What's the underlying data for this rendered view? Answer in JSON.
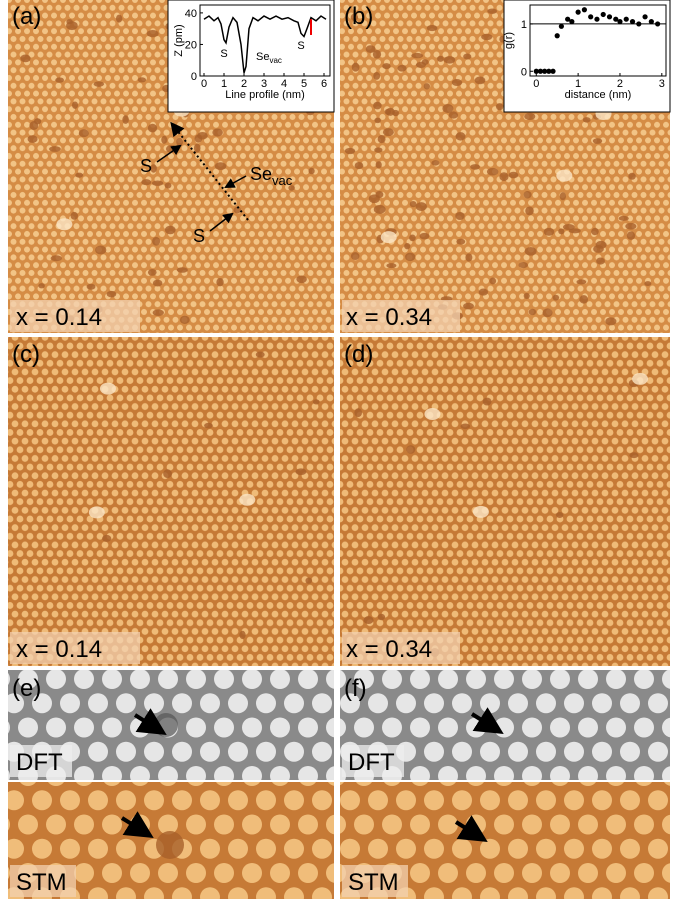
{
  "panels": [
    {
      "label": "(a)",
      "composition": "x = 0.14"
    },
    {
      "label": "(b)",
      "composition": "x = 0.34"
    },
    {
      "label": "(c)",
      "composition": "x = 0.14"
    },
    {
      "label": "(d)",
      "composition": "x = 0.34"
    },
    {
      "label": "(e)",
      "top": "DFT",
      "bottom": "STM"
    },
    {
      "label": "(f)",
      "top": "DFT",
      "bottom": "STM"
    }
  ],
  "annotations_a": {
    "s_upper": "S",
    "s_lower": "S",
    "vacancy": {
      "main": "Se",
      "sub": "vac"
    }
  },
  "inset_a": {
    "type": "line",
    "ylabel": "Z (pm)",
    "xlabel": "Line profile (nm)",
    "x": [
      0,
      0.25,
      0.5,
      0.7,
      0.85,
      1.0,
      1.1,
      1.25,
      1.45,
      1.65,
      1.85,
      2.0,
      2.1,
      2.25,
      2.45,
      2.7,
      3.0,
      3.3,
      3.6,
      3.9,
      4.2,
      4.5,
      4.7,
      4.85,
      5.0,
      5.15,
      5.35,
      5.6,
      5.85,
      6.1
    ],
    "values": [
      36,
      38,
      35,
      37,
      33,
      23,
      21,
      31,
      37,
      34,
      20,
      2,
      6,
      30,
      37,
      35,
      38,
      36,
      38,
      36,
      37,
      35,
      34,
      27,
      25,
      30,
      37,
      35,
      38,
      36
    ],
    "xlim": [
      -0.2,
      6.3
    ],
    "ylim": [
      0,
      45
    ],
    "xticks": [
      0,
      1,
      2,
      3,
      4,
      5,
      6
    ],
    "yticks": [
      0,
      20,
      40
    ],
    "peak_labels": {
      "s_left": "S",
      "vacancy": {
        "main": "Se",
        "sub": "vac"
      },
      "s_right": "S"
    }
  },
  "inset_b": {
    "type": "scatter",
    "ylabel": "g(r)",
    "xlabel": "distance (nm)",
    "x": [
      0,
      0.1,
      0.2,
      0.3,
      0.4,
      0.5,
      0.6,
      0.75,
      0.85,
      1.0,
      1.15,
      1.3,
      1.45,
      1.6,
      1.75,
      1.9,
      2.0,
      2.15,
      2.3,
      2.45,
      2.6,
      2.75,
      2.9
    ],
    "values": [
      0,
      0,
      0,
      0,
      0,
      0.75,
      0.95,
      1.1,
      1.05,
      1.25,
      1.3,
      1.15,
      1.1,
      1.2,
      1.15,
      1.1,
      1.05,
      1.1,
      1.05,
      1.0,
      1.15,
      1.05,
      1.0
    ],
    "xlim": [
      -0.15,
      3.1
    ],
    "ylim": [
      -0.1,
      1.4
    ],
    "xticks": [
      0,
      1,
      2,
      3
    ],
    "yticks": [
      0,
      1
    ],
    "reference_line": 1
  }
}
